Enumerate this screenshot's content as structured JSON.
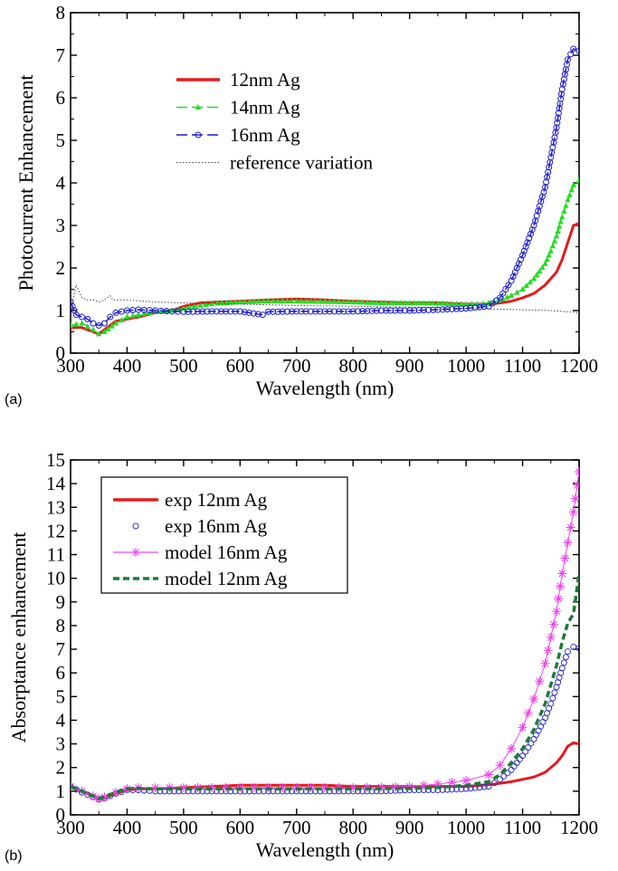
{
  "chart_data": [
    {
      "type": "line",
      "panel_label": "(a)",
      "xlabel": "Wavelength (nm)",
      "ylabel": "Photocurrent Enhancement",
      "xlim": [
        300,
        1200
      ],
      "ylim": [
        0,
        8
      ],
      "xticks": [
        300,
        400,
        500,
        600,
        700,
        800,
        900,
        1000,
        1100,
        1200
      ],
      "yticks": [
        0,
        1,
        2,
        3,
        4,
        5,
        6,
        7,
        8
      ],
      "legend_position": "upper-left",
      "series": [
        {
          "name": "12nm Ag",
          "color": "#e41a1c",
          "style": "solid",
          "x": [
            300,
            320,
            340,
            350,
            360,
            380,
            400,
            420,
            450,
            480,
            500,
            530,
            560,
            600,
            650,
            700,
            750,
            800,
            850,
            900,
            950,
            1000,
            1030,
            1050,
            1080,
            1100,
            1120,
            1140,
            1160,
            1170,
            1180,
            1190,
            1200
          ],
          "y": [
            0.6,
            0.6,
            0.5,
            0.45,
            0.55,
            0.75,
            0.8,
            0.85,
            0.95,
            1.0,
            1.1,
            1.18,
            1.2,
            1.22,
            1.25,
            1.27,
            1.25,
            1.22,
            1.2,
            1.18,
            1.18,
            1.15,
            1.15,
            1.16,
            1.22,
            1.3,
            1.4,
            1.6,
            1.9,
            2.2,
            2.6,
            3.0,
            3.05
          ]
        },
        {
          "name": "14nm Ag",
          "color": "#22dd22",
          "style": "dash-triangle",
          "x": [
            300,
            320,
            340,
            350,
            360,
            380,
            400,
            420,
            450,
            480,
            500,
            530,
            560,
            600,
            650,
            700,
            750,
            800,
            850,
            900,
            950,
            1000,
            1030,
            1050,
            1080,
            1100,
            1120,
            1140,
            1150,
            1160,
            1170,
            1180,
            1190,
            1200
          ],
          "y": [
            0.65,
            0.7,
            0.55,
            0.45,
            0.5,
            0.7,
            0.85,
            0.9,
            0.97,
            1.0,
            1.05,
            1.12,
            1.17,
            1.2,
            1.22,
            1.22,
            1.21,
            1.2,
            1.18,
            1.18,
            1.17,
            1.15,
            1.16,
            1.2,
            1.35,
            1.5,
            1.75,
            2.1,
            2.4,
            2.75,
            3.2,
            3.6,
            3.95,
            4.05
          ]
        },
        {
          "name": "16nm Ag",
          "color": "#1a1ad0",
          "style": "dash-circle",
          "x": [
            300,
            310,
            320,
            330,
            340,
            350,
            360,
            370,
            380,
            400,
            420,
            450,
            480,
            500,
            550,
            600,
            640,
            650,
            700,
            750,
            800,
            850,
            900,
            950,
            1000,
            1040,
            1060,
            1080,
            1100,
            1120,
            1140,
            1150,
            1160,
            1170,
            1180,
            1190,
            1200
          ],
          "y": [
            1.2,
            0.9,
            0.85,
            0.8,
            0.7,
            0.65,
            0.7,
            0.85,
            0.95,
            1.0,
            1.02,
            1.0,
            0.98,
            0.97,
            0.98,
            0.98,
            0.9,
            0.97,
            0.98,
            0.98,
            0.98,
            1.0,
            1.0,
            1.02,
            1.05,
            1.1,
            1.3,
            1.7,
            2.3,
            3.0,
            3.9,
            4.6,
            5.3,
            6.2,
            6.9,
            7.15,
            7.1
          ]
        },
        {
          "name": "reference variation",
          "color": "#444444",
          "style": "dotted",
          "x": [
            300,
            305,
            310,
            315,
            320,
            330,
            340,
            350,
            360,
            370,
            375,
            380,
            400,
            450,
            500,
            600,
            700,
            800,
            900,
            1000,
            1100,
            1150,
            1200
          ],
          "y": [
            1.1,
            1.3,
            1.6,
            1.45,
            1.3,
            1.25,
            1.25,
            1.2,
            1.25,
            1.35,
            1.25,
            1.25,
            1.25,
            1.2,
            1.18,
            1.15,
            1.12,
            1.1,
            1.08,
            1.05,
            1.02,
            1.0,
            0.95
          ]
        }
      ]
    },
    {
      "type": "line",
      "panel_label": "(b)",
      "xlabel": "Wavelength (nm)",
      "ylabel": "Absorptance enhancement",
      "xlim": [
        300,
        1200
      ],
      "ylim": [
        0,
        15
      ],
      "xticks": [
        300,
        400,
        500,
        600,
        700,
        800,
        900,
        1000,
        1100,
        1200
      ],
      "yticks": [
        0,
        1,
        2,
        3,
        4,
        5,
        6,
        7,
        8,
        9,
        10,
        11,
        12,
        13,
        14,
        15
      ],
      "legend_position": "upper-left",
      "series": [
        {
          "name": "exp 12nm Ag",
          "color": "#e41a1c",
          "style": "solid",
          "x": [
            300,
            320,
            340,
            350,
            360,
            380,
            400,
            420,
            450,
            500,
            550,
            600,
            650,
            700,
            750,
            800,
            850,
            900,
            950,
            1000,
            1050,
            1080,
            1100,
            1120,
            1140,
            1160,
            1170,
            1180,
            1190,
            1200
          ],
          "y": [
            1.2,
            1.0,
            0.8,
            0.65,
            0.7,
            0.9,
            1.05,
            1.1,
            1.1,
            1.15,
            1.2,
            1.25,
            1.25,
            1.25,
            1.25,
            1.2,
            1.2,
            1.2,
            1.2,
            1.2,
            1.3,
            1.4,
            1.5,
            1.6,
            1.8,
            2.2,
            2.5,
            2.9,
            3.05,
            3.0
          ]
        },
        {
          "name": "exp 16nm Ag",
          "color": "#3333cc",
          "style": "circle",
          "x": [
            300,
            320,
            340,
            350,
            360,
            380,
            400,
            420,
            450,
            500,
            550,
            600,
            650,
            700,
            750,
            800,
            850,
            900,
            950,
            1000,
            1040,
            1060,
            1080,
            1100,
            1120,
            1140,
            1150,
            1160,
            1170,
            1180,
            1190,
            1200
          ],
          "y": [
            1.2,
            0.95,
            0.75,
            0.65,
            0.7,
            0.9,
            1.05,
            1.05,
            1.0,
            1.0,
            1.0,
            1.0,
            1.0,
            1.0,
            1.0,
            1.0,
            1.0,
            1.05,
            1.05,
            1.1,
            1.2,
            1.5,
            1.9,
            2.5,
            3.2,
            4.1,
            4.7,
            5.4,
            6.2,
            6.9,
            7.1,
            7.05
          ]
        },
        {
          "name": "model 16nm Ag",
          "color": "#ee44ee",
          "style": "star",
          "x": [
            300,
            320,
            340,
            350,
            360,
            380,
            400,
            420,
            450,
            500,
            600,
            700,
            800,
            900,
            950,
            1000,
            1040,
            1060,
            1080,
            1100,
            1120,
            1140,
            1160,
            1170,
            1180,
            1190,
            1200
          ],
          "y": [
            1.2,
            1.0,
            0.8,
            0.7,
            0.75,
            0.95,
            1.1,
            1.15,
            1.15,
            1.15,
            1.15,
            1.15,
            1.15,
            1.2,
            1.3,
            1.45,
            1.7,
            2.1,
            2.8,
            3.7,
            4.9,
            6.4,
            8.6,
            10.2,
            11.5,
            12.8,
            14.5
          ]
        },
        {
          "name": "model 12nm Ag",
          "color": "#1e7a3a",
          "style": "dashed",
          "x": [
            300,
            320,
            340,
            350,
            360,
            380,
            400,
            420,
            450,
            500,
            600,
            700,
            800,
            900,
            950,
            1000,
            1040,
            1060,
            1080,
            1100,
            1120,
            1140,
            1160,
            1170,
            1180,
            1190,
            1200
          ],
          "y": [
            1.2,
            1.0,
            0.8,
            0.7,
            0.75,
            0.95,
            1.1,
            1.12,
            1.1,
            1.1,
            1.1,
            1.1,
            1.1,
            1.12,
            1.15,
            1.25,
            1.4,
            1.7,
            2.2,
            2.8,
            3.6,
            4.7,
            6.3,
            7.3,
            8.1,
            8.5,
            10.2
          ]
        }
      ]
    }
  ]
}
